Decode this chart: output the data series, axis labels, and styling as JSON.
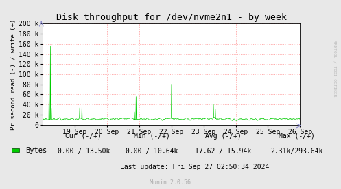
{
  "title": "Disk throughput for /dev/nvme2n1 - by week",
  "ylabel": "Pr second read (-) / write (+)",
  "background_color": "#e8e8e8",
  "plot_bg_color": "#ffffff",
  "grid_color": "#ffaaaa",
  "line_color": "#00cc00",
  "ylim": [
    0,
    200000
  ],
  "yticks": [
    0,
    20000,
    40000,
    60000,
    80000,
    100000,
    120000,
    140000,
    160000,
    180000,
    200000
  ],
  "ytick_labels": [
    "0",
    "20 k",
    "40 k",
    "60 k",
    "80 k",
    "100 k",
    "120 k",
    "140 k",
    "160 k",
    "180 k",
    "200 k"
  ],
  "xtick_labels": [
    "19 Sep",
    "20 Sep",
    "21 Sep",
    "22 Sep",
    "23 Sep",
    "24 Sep",
    "25 Sep",
    "26 Sep"
  ],
  "legend_label": "Bytes",
  "legend_color": "#00cc00",
  "cur_label": "Cur (-/+)",
  "cur_value": "0.00 / 13.50k",
  "min_label": "Min (-/+)",
  "min_value": "0.00 / 10.64k",
  "avg_label": "Avg (-/+)",
  "avg_value": "17.62 / 15.94k",
  "max_label": "Max (-/+)",
  "max_value": "2.31k/293.64k",
  "last_update": "Last update: Fri Sep 27 02:50:34 2024",
  "munin_version": "Munin 2.0.56",
  "rrdtool_label": "RRDTOOL / TOBI OETIKER",
  "n_points": 800,
  "spike_positions": [
    20,
    24,
    27,
    115,
    122,
    285,
    290,
    400,
    530,
    536
  ],
  "spike_heights": [
    60000,
    145000,
    22000,
    20000,
    27000,
    15000,
    45000,
    68000,
    27000,
    18000
  ],
  "base_min": 7000,
  "base_max": 16000
}
